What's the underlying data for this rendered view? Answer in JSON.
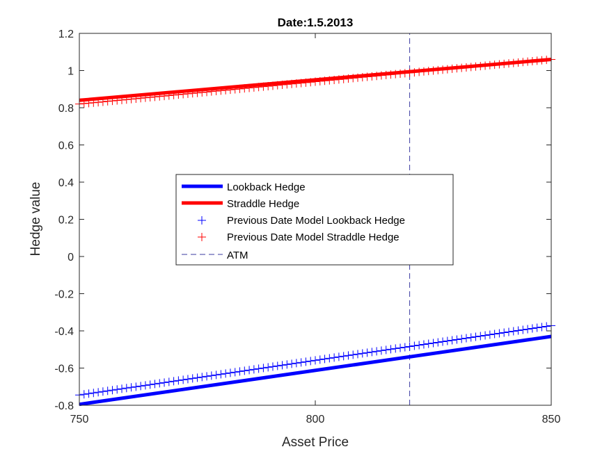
{
  "chart_data": {
    "type": "line",
    "title": "Date:1.5.2013",
    "xlabel": "Asset Price",
    "ylabel": "Hedge value",
    "xlim": [
      750,
      850
    ],
    "ylim": [
      -0.8,
      1.2
    ],
    "x_ticks": [
      750,
      800,
      850
    ],
    "x_tick_labels": [
      "750",
      "800",
      "850"
    ],
    "y_ticks": [
      -0.8,
      -0.6,
      -0.4,
      -0.2,
      0,
      0.2,
      0.4,
      0.6,
      0.8,
      1,
      1.2
    ],
    "y_tick_labels": [
      "-0.8",
      "-0.6",
      "-0.4",
      "-0.2",
      "0",
      "0.2",
      "0.4",
      "0.6",
      "0.8",
      "1",
      "1.2"
    ],
    "grid": false,
    "legend_position": "center",
    "atm_x": 820,
    "series": [
      {
        "name": "Lookback Hedge",
        "style": "line",
        "color": "#0000ff",
        "x": [
          750,
          850
        ],
        "y": [
          -0.795,
          -0.43
        ]
      },
      {
        "name": "Straddle Hedge",
        "style": "line",
        "color": "#ff0000",
        "x": [
          750,
          850
        ],
        "y": [
          0.84,
          1.06
        ]
      },
      {
        "name": "Previous Date Model Lookback Hedge",
        "style": "marker",
        "color": "#0000ff",
        "x_start": 750,
        "x_end": 850,
        "x_step": 1,
        "y_start": -0.745,
        "y_end": -0.372
      },
      {
        "name": "Previous Date Model Straddle Hedge",
        "style": "marker",
        "color": "#ff0000",
        "x_start": 750,
        "x_end": 850,
        "x_step": 1,
        "y_start": 0.82,
        "y_end": 1.06
      },
      {
        "name": "ATM",
        "style": "dashed",
        "color": "#3a3aa0",
        "x": [
          820,
          820
        ],
        "y": [
          -0.8,
          1.2
        ]
      }
    ]
  }
}
